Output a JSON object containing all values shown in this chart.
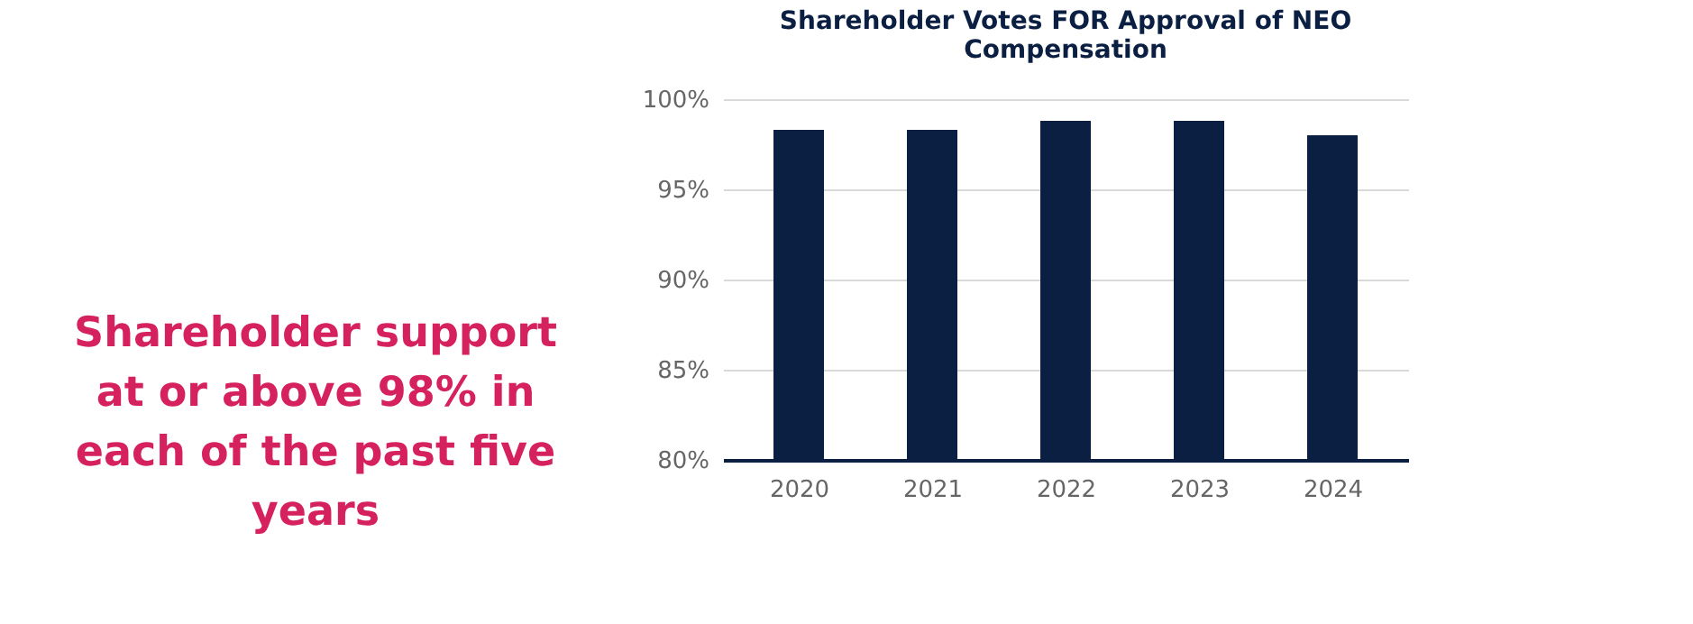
{
  "chart_data": {
    "type": "bar",
    "title": "Shareholder Votes FOR Approval of NEO Compensation",
    "categories": [
      "2020",
      "2021",
      "2022",
      "2023",
      "2024"
    ],
    "values": [
      98.3,
      98.3,
      98.8,
      98.8,
      98.0
    ],
    "color": "#0b1f42",
    "ylim": [
      80,
      100
    ],
    "yticks": [
      {
        "value": 80,
        "label": "80%"
      },
      {
        "value": 85,
        "label": "85%"
      },
      {
        "value": 90,
        "label": "90%"
      },
      {
        "value": 95,
        "label": "95%"
      },
      {
        "value": 100,
        "label": "100%"
      }
    ],
    "grid": "y",
    "annotations": [
      "Shareholder support at or above 98% in each of the past five years"
    ]
  }
}
